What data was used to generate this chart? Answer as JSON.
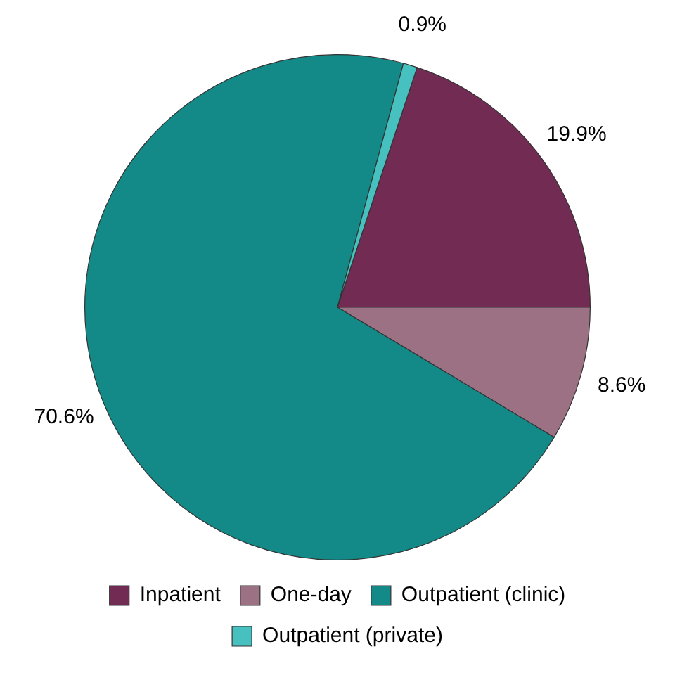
{
  "chart_data": {
    "type": "pie",
    "categories": [
      "Inpatient",
      "One-day",
      "Outpatient (clinic)",
      "Outpatient (private)"
    ],
    "values": [
      19.9,
      8.6,
      70.6,
      0.9
    ],
    "colors": [
      "#722b52",
      "#9b7183",
      "#138a87",
      "#47c1bf"
    ],
    "value_labels": [
      "19.9%",
      "8.6%",
      "70.6%",
      "0.9%"
    ],
    "legend": "bottom"
  }
}
